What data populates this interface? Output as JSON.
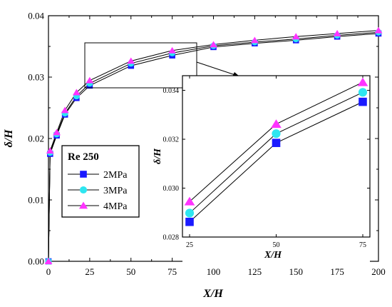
{
  "chart_data": {
    "type": "line",
    "xlabel": "X/H",
    "ylabel": "δ/H",
    "xlim": [
      0,
      200
    ],
    "ylim": [
      0,
      0.04
    ],
    "x_ticks": [
      "0",
      "25",
      "50",
      "75",
      "100",
      "125",
      "150",
      "175",
      "200"
    ],
    "y_ticks": [
      "0.00",
      "0.01",
      "0.02",
      "0.03",
      "0.04"
    ],
    "x": [
      0,
      1,
      5,
      10,
      17,
      25,
      50,
      75,
      100,
      125,
      150,
      175,
      200
    ],
    "series": [
      {
        "name": "2MPa",
        "marker": "square",
        "color": "#1a1aff",
        "values": [
          0,
          0.0175,
          0.0205,
          0.0239,
          0.0266,
          0.02862,
          0.03185,
          0.03353,
          0.0349,
          0.0355,
          0.036,
          0.0366,
          0.0371
        ]
      },
      {
        "name": "3MPa",
        "marker": "circle",
        "color": "#2ee6f0",
        "values": [
          0,
          0.0177,
          0.0207,
          0.0241,
          0.0269,
          0.02898,
          0.03223,
          0.03392,
          0.0351,
          0.0357,
          0.0362,
          0.0368,
          0.0373
        ]
      },
      {
        "name": "4MPa",
        "marker": "triangle",
        "color": "#ff33ff",
        "values": [
          0,
          0.018,
          0.021,
          0.0246,
          0.0275,
          0.02945,
          0.03262,
          0.03433,
          0.0353,
          0.036,
          0.0366,
          0.0371,
          0.0376
        ]
      }
    ],
    "legend": {
      "title": "Re 250",
      "placement": "left-center"
    },
    "inset": {
      "xlabel": "X/H",
      "ylabel": "δ/H",
      "xlim": [
        25,
        75
      ],
      "ylim": [
        0.028,
        0.0346
      ],
      "x_ticks": [
        "25",
        "50",
        "75"
      ],
      "y_ticks": [
        "0.028",
        "0.030",
        "0.032",
        "0.034"
      ]
    },
    "grid": false
  }
}
